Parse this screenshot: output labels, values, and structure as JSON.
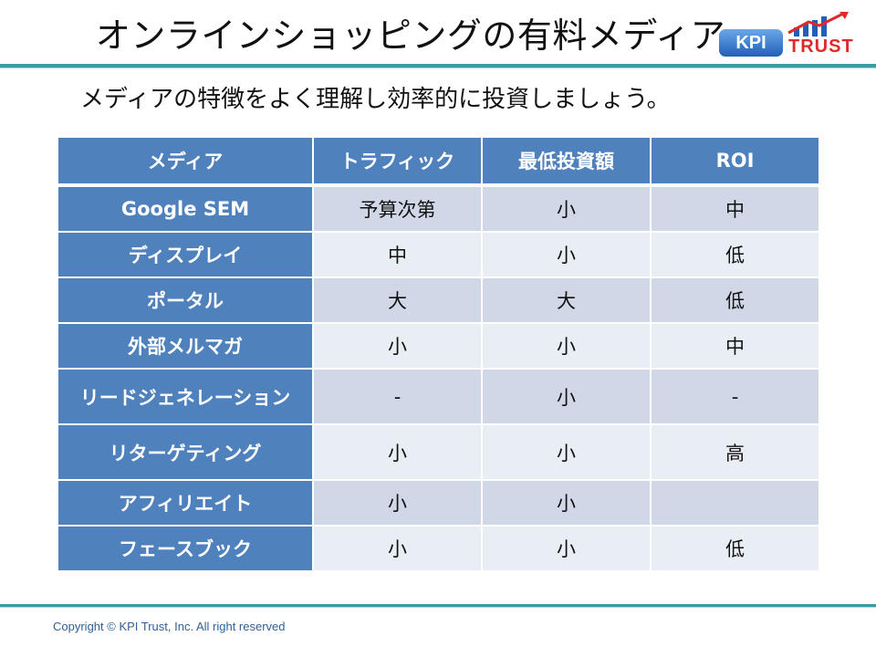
{
  "title": "オンラインショッピングの有料メディア",
  "logo": {
    "box_text": "KPI",
    "word": "TRUST",
    "name": "kpi-trust-logo"
  },
  "subtitle": "メディアの特徴をよく理解し効率的に投資しましょう。",
  "table": {
    "headers": [
      "メディア",
      "トラフィック",
      "最低投資額",
      "ROI"
    ],
    "rows": [
      {
        "media": "Google SEM",
        "traffic": "予算次第",
        "min_investment": "小",
        "roi": "中"
      },
      {
        "media": "ディスプレイ",
        "traffic": "中",
        "min_investment": "小",
        "roi": "低"
      },
      {
        "media": "ポータル",
        "traffic": "大",
        "min_investment": "大",
        "roi": "低"
      },
      {
        "media": "外部メルマガ",
        "traffic": "小",
        "min_investment": "小",
        "roi": "中"
      },
      {
        "media": "リードジェネレーション",
        "traffic": "-",
        "min_investment": "小",
        "roi": "-"
      },
      {
        "media": "リターゲティング",
        "traffic": "小",
        "min_investment": "小",
        "roi": "高"
      },
      {
        "media": "アフィリエイト",
        "traffic": "小",
        "min_investment": "小",
        "roi": ""
      },
      {
        "media": "フェースブック",
        "traffic": "小",
        "min_investment": "小",
        "roi": "低"
      }
    ]
  },
  "footer": "Copyright © KPI Trust, Inc.  All right reserved",
  "colors": {
    "accent": "#4f81bd",
    "rule": "#3d9aa6",
    "row_dark": "#d0d8e8",
    "row_light": "#e9edf4",
    "logo_red": "#e02a2a"
  }
}
